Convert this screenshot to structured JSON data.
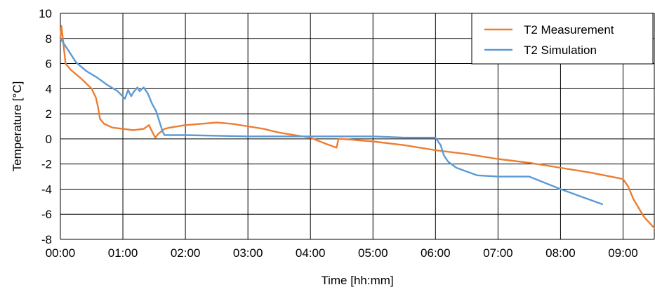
{
  "chart_data": {
    "type": "line",
    "title": "",
    "xlabel": "Time [hh:mm]",
    "ylabel": "Temperature [°C]",
    "xlim": [
      "00:00",
      "09:30"
    ],
    "ylim": [
      -8,
      10
    ],
    "x_ticks": [
      "00:00",
      "01:00",
      "02:00",
      "03:00",
      "04:00",
      "05:00",
      "06:00",
      "07:00",
      "08:00",
      "09:00"
    ],
    "y_ticks": [
      10,
      8,
      6,
      4,
      2,
      0,
      -2,
      -4,
      -6,
      -8
    ],
    "grid": true,
    "legend_position": "top-right",
    "series": [
      {
        "name": "T2 Measurement",
        "color": "#ED7D31",
        "x": [
          "00:00",
          "00:01",
          "00:03",
          "00:05",
          "00:10",
          "00:20",
          "00:30",
          "00:34",
          "00:36",
          "00:38",
          "00:42",
          "00:50",
          "01:00",
          "01:10",
          "01:20",
          "01:25",
          "01:28",
          "01:31",
          "01:34",
          "01:40",
          "01:45",
          "02:00",
          "02:15",
          "02:30",
          "02:45",
          "03:00",
          "03:15",
          "03:30",
          "03:45",
          "04:00",
          "04:15",
          "04:25",
          "04:27",
          "04:30",
          "05:00",
          "05:30",
          "06:00",
          "06:30",
          "07:00",
          "07:30",
          "08:00",
          "08:30",
          "09:00",
          "09:05",
          "09:10",
          "09:20",
          "09:30"
        ],
        "y": [
          8.0,
          9.0,
          7.5,
          6.0,
          5.5,
          4.8,
          4.0,
          3.3,
          2.6,
          1.6,
          1.2,
          0.9,
          0.8,
          0.7,
          0.8,
          1.1,
          0.6,
          0.1,
          0.4,
          0.8,
          0.9,
          1.1,
          1.2,
          1.3,
          1.2,
          1.0,
          0.8,
          0.5,
          0.3,
          0.1,
          -0.4,
          -0.7,
          0.0,
          0.0,
          -0.2,
          -0.5,
          -0.9,
          -1.2,
          -1.6,
          -1.9,
          -2.3,
          -2.7,
          -3.2,
          -3.8,
          -4.8,
          -6.2,
          -7.1
        ]
      },
      {
        "name": "T2 Simulation",
        "color": "#5B9BD5",
        "x": [
          "00:00",
          "00:08",
          "00:15",
          "00:25",
          "00:35",
          "00:45",
          "00:55",
          "01:02",
          "01:05",
          "01:08",
          "01:10",
          "01:14",
          "01:16",
          "01:20",
          "01:24",
          "01:28",
          "01:32",
          "01:35",
          "01:38",
          "01:40",
          "01:45",
          "02:00",
          "03:00",
          "04:00",
          "05:00",
          "05:30",
          "06:00",
          "06:05",
          "06:08",
          "06:12",
          "06:20",
          "06:30",
          "06:40",
          "07:00",
          "07:30",
          "07:45",
          "08:00",
          "08:20",
          "08:40"
        ],
        "y": [
          8.0,
          7.0,
          6.1,
          5.4,
          4.9,
          4.3,
          3.8,
          3.2,
          3.9,
          3.4,
          3.7,
          4.1,
          3.8,
          4.1,
          3.6,
          2.8,
          2.2,
          1.4,
          0.6,
          0.3,
          0.3,
          0.3,
          0.2,
          0.2,
          0.2,
          0.1,
          0.1,
          -0.5,
          -1.3,
          -1.8,
          -2.3,
          -2.6,
          -2.9,
          -3.0,
          -3.0,
          -3.5,
          -4.0,
          -4.6,
          -5.2
        ]
      }
    ]
  }
}
